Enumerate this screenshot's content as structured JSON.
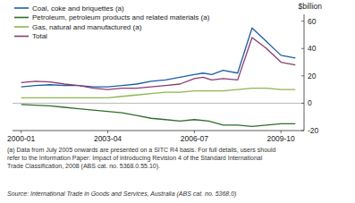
{
  "chart_data": {
    "type": "line",
    "y_label": "$billion",
    "xlim": [
      -0.3,
      9.8
    ],
    "xticks": [
      {
        "value": 0,
        "label": "2000-01"
      },
      {
        "value": 3,
        "label": "2003-04"
      },
      {
        "value": 6,
        "label": "2006-07"
      },
      {
        "value": 9,
        "label": "2009-10"
      }
    ],
    "ylim": [
      -20,
      65
    ],
    "yticks": [
      -20,
      0,
      20,
      40,
      60
    ],
    "grid": false,
    "legend": "top-left",
    "series": [
      {
        "name": "Coal, coke and briquettes (a)",
        "color": "#1a5ea8",
        "x": [
          0,
          0.5,
          1,
          1.5,
          2,
          2.5,
          3,
          3.5,
          4,
          4.5,
          5,
          5.5,
          6,
          6.3,
          6.6,
          7,
          7.5,
          8,
          8.5,
          9,
          9.5
        ],
        "values": [
          12,
          13,
          13.5,
          13,
          13,
          12,
          12,
          13,
          14,
          16,
          17,
          19,
          21,
          22,
          21,
          24,
          22,
          55,
          45,
          35,
          33
        ]
      },
      {
        "name": "Petroleum, petroleum products and related materials (a)",
        "color": "#2d6e2d",
        "x": [
          0,
          0.5,
          1,
          1.5,
          2,
          2.5,
          3,
          3.5,
          4,
          4.5,
          5,
          5.5,
          6,
          6.5,
          7,
          7.5,
          8,
          8.5,
          9,
          9.5
        ],
        "values": [
          -1,
          -1.5,
          -2,
          -3,
          -4,
          -5,
          -6,
          -7,
          -9,
          -11,
          -12,
          -13,
          -12,
          -13,
          -16,
          -16,
          -17,
          -16,
          -15,
          -15
        ]
      },
      {
        "name": "Gas, natural and manufactured (a)",
        "color": "#8db54e",
        "x": [
          0,
          0.5,
          1,
          1.5,
          2,
          2.5,
          3,
          3.5,
          4,
          4.5,
          5,
          5.5,
          6,
          6.5,
          7,
          7.5,
          8,
          8.5,
          9,
          9.5
        ],
        "values": [
          4,
          4,
          4,
          4,
          4,
          4,
          4,
          5,
          6,
          7,
          8,
          8,
          9,
          9,
          9,
          10,
          11,
          11,
          10,
          10
        ]
      },
      {
        "name": "Total",
        "color": "#8b3a6e",
        "x": [
          0,
          0.5,
          1,
          1.5,
          2,
          2.5,
          3,
          3.5,
          4,
          4.5,
          5,
          5.5,
          6,
          6.3,
          6.6,
          7,
          7.5,
          8,
          8.5,
          9,
          9.5
        ],
        "values": [
          15,
          16,
          15.5,
          14,
          13,
          11,
          10,
          11,
          11,
          12,
          13,
          14,
          18,
          19,
          17,
          18,
          17,
          48,
          40,
          30,
          28
        ]
      }
    ],
    "annotations": [
      "(a) Data from July 2005 onwards are presented on a SITC R4 basis. For full details, users should\nrefer to the Information Paper: Impact of introducing Revision 4 of the Standard International\nTrade Classification, 2008 (ABS cat. no. 5368.0.55.10).",
      "Source: International Trade in Goods and Services, Australia (ABS cat. no. 5368.0)"
    ]
  }
}
